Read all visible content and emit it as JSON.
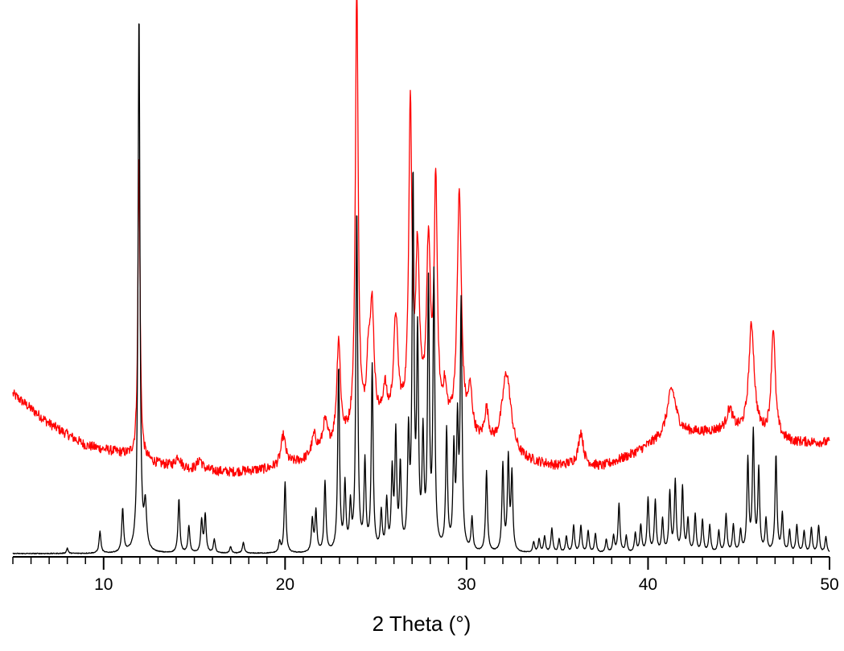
{
  "chart_data": {
    "type": "line",
    "title": "",
    "xlabel": "2 Theta (°)",
    "ylabel": "",
    "xlim": [
      5,
      50
    ],
    "ylim": [
      0,
      1
    ],
    "grid": false,
    "x_major_ticks": [
      10,
      20,
      30,
      40,
      50
    ],
    "x_minor_step": 1,
    "x_tick_labels": [
      "10",
      "20",
      "30",
      "40",
      "50"
    ],
    "series": [
      {
        "color": "#ff0000",
        "baseline": [
          [
            5,
            0.295
          ],
          [
            7,
            0.24
          ],
          [
            9,
            0.2
          ],
          [
            11,
            0.185
          ],
          [
            13,
            0.165
          ],
          [
            15,
            0.155
          ],
          [
            17,
            0.15
          ],
          [
            19,
            0.155
          ],
          [
            21,
            0.17
          ],
          [
            23,
            0.2
          ],
          [
            25,
            0.235
          ],
          [
            27,
            0.24
          ],
          [
            29,
            0.225
          ],
          [
            31,
            0.195
          ],
          [
            33,
            0.17
          ],
          [
            35,
            0.16
          ],
          [
            36,
            0.165
          ],
          [
            37.5,
            0.16
          ],
          [
            39,
            0.18
          ],
          [
            40.5,
            0.205
          ],
          [
            42,
            0.22
          ],
          [
            44,
            0.225
          ],
          [
            46,
            0.22
          ],
          [
            48,
            0.205
          ],
          [
            50,
            0.205
          ]
        ],
        "peaks": [
          [
            11.95,
            0.55,
            0.07
          ],
          [
            14.1,
            0.02,
            0.15
          ],
          [
            15.3,
            0.02,
            0.15
          ],
          [
            19.9,
            0.055,
            0.15
          ],
          [
            21.6,
            0.035,
            0.15
          ],
          [
            22.2,
            0.05,
            0.15
          ],
          [
            22.95,
            0.19,
            0.12
          ],
          [
            23.95,
            0.83,
            0.09
          ],
          [
            24.6,
            0.12,
            0.12
          ],
          [
            24.8,
            0.2,
            0.12
          ],
          [
            25.5,
            0.06,
            0.12
          ],
          [
            26.1,
            0.19,
            0.14
          ],
          [
            26.9,
            0.58,
            0.1
          ],
          [
            27.3,
            0.3,
            0.12
          ],
          [
            27.9,
            0.32,
            0.13
          ],
          [
            28.3,
            0.44,
            0.1
          ],
          [
            28.8,
            0.06,
            0.12
          ],
          [
            29.6,
            0.44,
            0.14
          ],
          [
            30.2,
            0.08,
            0.14
          ],
          [
            31.1,
            0.06,
            0.14
          ],
          [
            32.2,
            0.15,
            0.3
          ],
          [
            36.3,
            0.06,
            0.15
          ],
          [
            41.3,
            0.09,
            0.3
          ],
          [
            44.5,
            0.04,
            0.2
          ],
          [
            45.7,
            0.2,
            0.18
          ],
          [
            46.9,
            0.2,
            0.13
          ]
        ]
      },
      {
        "color": "#000000",
        "baseline": [
          [
            5,
            0
          ],
          [
            50,
            0
          ]
        ],
        "peaks": [
          [
            8,
            0.01,
            0.05
          ],
          [
            9.8,
            0.04,
            0.06
          ],
          [
            11.05,
            0.08,
            0.06
          ],
          [
            11.95,
            1.0,
            0.06
          ],
          [
            12.3,
            0.08,
            0.08
          ],
          [
            14.15,
            0.1,
            0.06
          ],
          [
            14.7,
            0.05,
            0.06
          ],
          [
            15.4,
            0.06,
            0.06
          ],
          [
            15.6,
            0.07,
            0.06
          ],
          [
            16.1,
            0.025,
            0.06
          ],
          [
            17.0,
            0.012,
            0.06
          ],
          [
            17.7,
            0.02,
            0.06
          ],
          [
            19.7,
            0.02,
            0.06
          ],
          [
            20.0,
            0.13,
            0.06
          ],
          [
            21.5,
            0.06,
            0.06
          ],
          [
            21.7,
            0.075,
            0.06
          ],
          [
            22.2,
            0.13,
            0.06
          ],
          [
            22.95,
            0.34,
            0.06
          ],
          [
            23.3,
            0.12,
            0.06
          ],
          [
            23.6,
            0.08,
            0.06
          ],
          [
            23.95,
            0.63,
            0.06
          ],
          [
            24.4,
            0.16,
            0.06
          ],
          [
            24.8,
            0.34,
            0.06
          ],
          [
            25.3,
            0.07,
            0.06
          ],
          [
            25.6,
            0.09,
            0.06
          ],
          [
            25.9,
            0.14,
            0.06
          ],
          [
            26.1,
            0.21,
            0.06
          ],
          [
            26.35,
            0.15,
            0.06
          ],
          [
            26.8,
            0.2,
            0.06
          ],
          [
            27.05,
            0.68,
            0.06
          ],
          [
            27.3,
            0.38,
            0.06
          ],
          [
            27.6,
            0.2,
            0.06
          ],
          [
            27.9,
            0.48,
            0.06
          ],
          [
            28.2,
            0.5,
            0.06
          ],
          [
            28.9,
            0.22,
            0.06
          ],
          [
            29.3,
            0.18,
            0.06
          ],
          [
            29.5,
            0.22,
            0.06
          ],
          [
            29.7,
            0.45,
            0.06
          ],
          [
            30.3,
            0.06,
            0.06
          ],
          [
            31.1,
            0.15,
            0.06
          ],
          [
            32.0,
            0.16,
            0.06
          ],
          [
            32.3,
            0.17,
            0.06
          ],
          [
            32.5,
            0.14,
            0.06
          ],
          [
            33.7,
            0.02,
            0.06
          ],
          [
            34.0,
            0.025,
            0.06
          ],
          [
            34.3,
            0.03,
            0.06
          ],
          [
            34.7,
            0.045,
            0.06
          ],
          [
            35.1,
            0.025,
            0.06
          ],
          [
            35.5,
            0.03,
            0.06
          ],
          [
            35.9,
            0.05,
            0.06
          ],
          [
            36.3,
            0.05,
            0.06
          ],
          [
            36.7,
            0.04,
            0.06
          ],
          [
            37.1,
            0.035,
            0.06
          ],
          [
            37.7,
            0.025,
            0.06
          ],
          [
            38.1,
            0.03,
            0.06
          ],
          [
            38.4,
            0.09,
            0.06
          ],
          [
            38.8,
            0.03,
            0.06
          ],
          [
            39.3,
            0.035,
            0.06
          ],
          [
            39.6,
            0.05,
            0.06
          ],
          [
            40.0,
            0.1,
            0.06
          ],
          [
            40.4,
            0.095,
            0.06
          ],
          [
            40.8,
            0.06,
            0.06
          ],
          [
            41.2,
            0.11,
            0.06
          ],
          [
            41.5,
            0.13,
            0.06
          ],
          [
            41.9,
            0.12,
            0.06
          ],
          [
            42.2,
            0.06,
            0.06
          ],
          [
            42.6,
            0.07,
            0.06
          ],
          [
            43.0,
            0.06,
            0.06
          ],
          [
            43.4,
            0.05,
            0.06
          ],
          [
            43.9,
            0.04,
            0.06
          ],
          [
            44.3,
            0.07,
            0.06
          ],
          [
            44.7,
            0.05,
            0.06
          ],
          [
            45.1,
            0.04,
            0.06
          ],
          [
            45.5,
            0.17,
            0.06
          ],
          [
            45.8,
            0.22,
            0.06
          ],
          [
            46.1,
            0.15,
            0.06
          ],
          [
            46.5,
            0.06,
            0.06
          ],
          [
            47.05,
            0.18,
            0.06
          ],
          [
            47.4,
            0.07,
            0.06
          ],
          [
            47.8,
            0.04,
            0.06
          ],
          [
            48.2,
            0.05,
            0.06
          ],
          [
            48.6,
            0.04,
            0.06
          ],
          [
            49.0,
            0.045,
            0.06
          ],
          [
            49.4,
            0.05,
            0.06
          ],
          [
            49.8,
            0.03,
            0.06
          ]
        ]
      }
    ]
  }
}
